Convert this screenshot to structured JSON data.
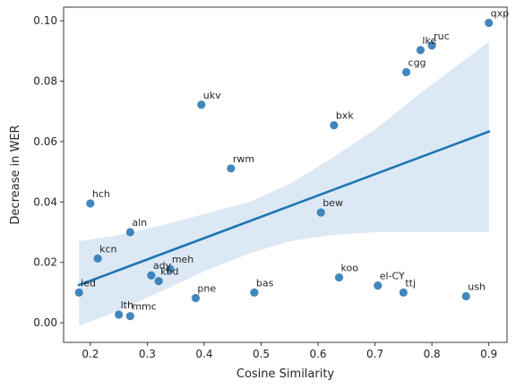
{
  "chart_data": {
    "type": "scatter",
    "xlabel": "Cosine Similarity",
    "ylabel": "Decrease in WER",
    "xlim": [
      0.153,
      0.932
    ],
    "ylim": [
      -0.0065,
      0.1045
    ],
    "xticks": [
      0.2,
      0.3,
      0.4,
      0.5,
      0.6,
      0.7,
      0.8,
      0.9
    ],
    "xtick_labels": [
      "0.2",
      "0.3",
      "0.4",
      "0.5",
      "0.6",
      "0.7",
      "0.8",
      "0.9"
    ],
    "yticks": [
      0.0,
      0.02,
      0.04,
      0.06,
      0.08,
      0.1
    ],
    "ytick_labels": [
      "0.00",
      "0.02",
      "0.04",
      "0.06",
      "0.08",
      "0.10"
    ],
    "grid": false,
    "colors": {
      "point": "#2e7ab5",
      "line": "#1f77b4",
      "band": "#dce8f4"
    },
    "points": [
      {
        "label": "qxp",
        "x": 0.9,
        "y": 0.0993
      },
      {
        "label": "ruc",
        "x": 0.8,
        "y": 0.0918
      },
      {
        "label": "lke",
        "x": 0.78,
        "y": 0.0903
      },
      {
        "label": "cgg",
        "x": 0.755,
        "y": 0.083
      },
      {
        "label": "ukv",
        "x": 0.395,
        "y": 0.0722
      },
      {
        "label": "bxk",
        "x": 0.628,
        "y": 0.0654
      },
      {
        "label": "rwm",
        "x": 0.447,
        "y": 0.0511
      },
      {
        "label": "hch",
        "x": 0.2,
        "y": 0.0395
      },
      {
        "label": "bew",
        "x": 0.605,
        "y": 0.0365
      },
      {
        "label": "aln",
        "x": 0.27,
        "y": 0.03
      },
      {
        "label": "kcn",
        "x": 0.213,
        "y": 0.0213
      },
      {
        "label": "ady",
        "x": 0.307,
        "y": 0.0157
      },
      {
        "label": "meh",
        "x": 0.34,
        "y": 0.0178
      },
      {
        "label": "kbd",
        "x": 0.32,
        "y": 0.0138
      },
      {
        "label": "koo",
        "x": 0.637,
        "y": 0.015
      },
      {
        "label": "led",
        "x": 0.18,
        "y": 0.01
      },
      {
        "label": "bas",
        "x": 0.488,
        "y": 0.01
      },
      {
        "label": "el-CY",
        "x": 0.705,
        "y": 0.0123
      },
      {
        "label": "ttj",
        "x": 0.75,
        "y": 0.01
      },
      {
        "label": "ush",
        "x": 0.86,
        "y": 0.0088
      },
      {
        "label": "pne",
        "x": 0.385,
        "y": 0.0082
      },
      {
        "label": "lth",
        "x": 0.25,
        "y": 0.0027
      },
      {
        "label": "mmc",
        "x": 0.27,
        "y": 0.0022
      }
    ],
    "regression": {
      "x": [
        0.18,
        0.9
      ],
      "y": [
        0.0125,
        0.0633
      ],
      "band": [
        {
          "x": 0.18,
          "lower": -0.001,
          "upper": 0.027
        },
        {
          "x": 0.25,
          "lower": 0.004,
          "upper": 0.029
        },
        {
          "x": 0.32,
          "lower": 0.01,
          "upper": 0.032
        },
        {
          "x": 0.4,
          "lower": 0.017,
          "upper": 0.036
        },
        {
          "x": 0.48,
          "lower": 0.023,
          "upper": 0.04
        },
        {
          "x": 0.55,
          "lower": 0.027,
          "upper": 0.046
        },
        {
          "x": 0.62,
          "lower": 0.029,
          "upper": 0.054
        },
        {
          "x": 0.7,
          "lower": 0.03,
          "upper": 0.064
        },
        {
          "x": 0.78,
          "lower": 0.03,
          "upper": 0.076
        },
        {
          "x": 0.85,
          "lower": 0.03,
          "upper": 0.086
        },
        {
          "x": 0.9,
          "lower": 0.03,
          "upper": 0.093
        }
      ]
    }
  }
}
